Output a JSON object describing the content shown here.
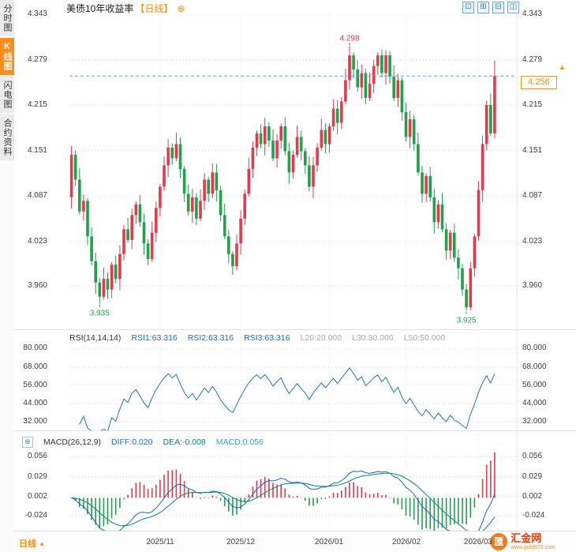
{
  "sidebar": {
    "tabs": [
      {
        "label": "分时图",
        "selected": false
      },
      {
        "label": "K线图",
        "selected": true
      },
      {
        "label": "闪电图",
        "selected": false
      },
      {
        "label": "合约资料",
        "selected": false
      }
    ]
  },
  "titlebar": {
    "title": "美债10年收益率",
    "period": "【日线】",
    "add_icon": "⊕",
    "layout_icons": [
      {
        "name": "layout-single",
        "glyph": "⊡"
      },
      {
        "name": "layout-grid",
        "glyph": "⊞"
      },
      {
        "name": "layout-hsplit",
        "glyph": "⊟"
      },
      {
        "name": "layout-vsplit",
        "glyph": "◫"
      }
    ]
  },
  "icons": {
    "macd_tool": "⊕",
    "period_arrow": "▲",
    "price_arrow": "▲"
  },
  "bottombar": {
    "period_label": "日线"
  },
  "logo": {
    "mark": "匯",
    "name": "汇金网",
    "url": "www.gold678.com"
  },
  "colors": {
    "up": "#e8384a",
    "down": "#1fa24a",
    "rsi": "#2176ae",
    "diff": "#1565c0",
    "dea": "#00897b",
    "dash": "#4aa7f0",
    "accent": "#ff8a00"
  },
  "chart_data": {
    "type": "candlestick",
    "title": "美债10年收益率【日线】",
    "slots": 111,
    "xticks": [
      {
        "index": 22,
        "label": "2025/11"
      },
      {
        "index": 42,
        "label": "2025/12"
      },
      {
        "index": 64,
        "label": "2026/01"
      },
      {
        "index": 83,
        "label": "2026/02"
      },
      {
        "index": 101,
        "label": "2026/03"
      }
    ],
    "main": {
      "ylim": [
        3.899,
        4.343
      ],
      "yticks": [
        "4.343",
        "4.279",
        "4.215",
        "4.151",
        "4.087",
        "4.023",
        "3.960"
      ],
      "current_price": 4.256,
      "current_price_label": "4.256",
      "annotations": [
        {
          "index": 69,
          "value": 4.298,
          "label": "4.298",
          "type": "high"
        },
        {
          "index": 7,
          "value": 3.935,
          "label": "3.935",
          "type": "low"
        },
        {
          "index": 98,
          "value": 3.925,
          "label": "3.925",
          "type": "low"
        }
      ],
      "candles": [
        [
          4.085,
          4.157,
          4.069,
          4.145
        ],
        [
          4.145,
          4.151,
          4.101,
          4.11
        ],
        [
          4.11,
          4.126,
          4.061,
          4.065
        ],
        [
          4.065,
          4.089,
          4.052,
          4.08
        ],
        [
          4.08,
          4.084,
          4.018,
          4.03
        ],
        [
          4.03,
          4.043,
          3.989,
          3.995
        ],
        [
          3.995,
          4.007,
          3.949,
          3.965
        ],
        [
          3.965,
          3.971,
          3.935,
          3.945
        ],
        [
          3.945,
          3.986,
          3.941,
          3.97
        ],
        [
          3.97,
          3.979,
          3.942,
          3.955
        ],
        [
          3.955,
          3.994,
          3.943,
          3.99
        ],
        [
          3.99,
          4.003,
          3.964,
          3.97
        ],
        [
          3.97,
          4.017,
          3.954,
          4.005
        ],
        [
          4.005,
          4.046,
          3.996,
          4.04
        ],
        [
          4.04,
          4.056,
          4.021,
          4.025
        ],
        [
          4.025,
          4.069,
          4.012,
          4.06
        ],
        [
          4.06,
          4.079,
          4.048,
          4.075
        ],
        [
          4.075,
          4.088,
          4.044,
          4.05
        ],
        [
          4.05,
          4.062,
          4.004,
          4.02
        ],
        [
          4.02,
          4.026,
          3.989,
          3.998
        ],
        [
          3.998,
          4.051,
          3.994,
          4.035
        ],
        [
          4.035,
          4.079,
          4.022,
          4.07
        ],
        [
          4.07,
          4.104,
          4.058,
          4.1
        ],
        [
          4.1,
          4.143,
          4.094,
          4.13
        ],
        [
          4.13,
          4.167,
          4.114,
          4.155
        ],
        [
          4.155,
          4.161,
          4.131,
          4.14
        ],
        [
          4.14,
          4.176,
          4.136,
          4.16
        ],
        [
          4.16,
          4.169,
          4.112,
          4.125
        ],
        [
          4.125,
          4.129,
          4.078,
          4.09
        ],
        [
          4.09,
          4.103,
          4.059,
          4.065
        ],
        [
          4.065,
          4.097,
          4.049,
          4.085
        ],
        [
          4.085,
          4.091,
          4.046,
          4.055
        ],
        [
          4.055,
          4.096,
          4.051,
          4.08
        ],
        [
          4.08,
          4.119,
          4.067,
          4.11
        ],
        [
          4.11,
          4.114,
          4.078,
          4.09
        ],
        [
          4.09,
          4.133,
          4.084,
          4.12
        ],
        [
          4.12,
          4.132,
          4.079,
          4.095
        ],
        [
          4.095,
          4.101,
          4.051,
          4.06
        ],
        [
          4.06,
          4.076,
          4.026,
          4.03
        ],
        [
          4.03,
          4.039,
          3.992,
          4.005
        ],
        [
          4.005,
          4.009,
          3.976,
          3.988
        ],
        [
          3.988,
          4.033,
          3.982,
          4.02
        ],
        [
          4.02,
          4.067,
          4.004,
          4.055
        ],
        [
          4.055,
          4.096,
          4.046,
          4.09
        ],
        [
          4.09,
          4.141,
          4.086,
          4.125
        ],
        [
          4.125,
          4.164,
          4.112,
          4.155
        ],
        [
          4.155,
          4.179,
          4.143,
          4.175
        ],
        [
          4.175,
          4.188,
          4.154,
          4.16
        ],
        [
          4.16,
          4.197,
          4.144,
          4.185
        ],
        [
          4.185,
          4.191,
          4.156,
          4.165
        ],
        [
          4.165,
          4.181,
          4.136,
          4.14
        ],
        [
          4.14,
          4.174,
          4.127,
          4.165
        ],
        [
          4.165,
          4.189,
          4.153,
          4.185
        ],
        [
          4.185,
          4.198,
          4.144,
          4.15
        ],
        [
          4.15,
          4.162,
          4.104,
          4.12
        ],
        [
          4.12,
          4.151,
          4.111,
          4.145
        ],
        [
          4.145,
          4.186,
          4.141,
          4.17
        ],
        [
          4.17,
          4.179,
          4.137,
          4.15
        ],
        [
          4.15,
          4.154,
          4.118,
          4.13
        ],
        [
          4.13,
          4.143,
          4.094,
          4.1
        ],
        [
          4.1,
          4.142,
          4.084,
          4.13
        ],
        [
          4.13,
          4.161,
          4.121,
          4.155
        ],
        [
          4.155,
          4.196,
          4.151,
          4.18
        ],
        [
          4.18,
          4.189,
          4.147,
          4.16
        ],
        [
          4.16,
          4.189,
          4.148,
          4.185
        ],
        [
          4.185,
          4.223,
          4.179,
          4.21
        ],
        [
          4.21,
          4.222,
          4.174,
          4.19
        ],
        [
          4.19,
          4.226,
          4.181,
          4.22
        ],
        [
          4.22,
          4.266,
          4.216,
          4.25
        ],
        [
          4.25,
          4.298,
          4.237,
          4.285
        ],
        [
          4.285,
          4.289,
          4.253,
          4.265
        ],
        [
          4.265,
          4.278,
          4.234,
          4.24
        ],
        [
          4.24,
          4.272,
          4.224,
          4.26
        ],
        [
          4.26,
          4.266,
          4.216,
          4.225
        ],
        [
          4.225,
          4.261,
          4.221,
          4.245
        ],
        [
          4.245,
          4.279,
          4.232,
          4.27
        ],
        [
          4.27,
          4.289,
          4.258,
          4.285
        ],
        [
          4.285,
          4.293,
          4.254,
          4.26
        ],
        [
          4.26,
          4.292,
          4.244,
          4.285
        ],
        [
          4.285,
          4.291,
          4.246,
          4.255
        ],
        [
          4.255,
          4.271,
          4.221,
          4.225
        ],
        [
          4.225,
          4.259,
          4.212,
          4.25
        ],
        [
          4.25,
          4.254,
          4.193,
          4.205
        ],
        [
          4.205,
          4.218,
          4.164,
          4.17
        ],
        [
          4.17,
          4.207,
          4.154,
          4.195
        ],
        [
          4.195,
          4.201,
          4.151,
          4.16
        ],
        [
          4.16,
          4.176,
          4.116,
          4.12
        ],
        [
          4.12,
          4.129,
          4.077,
          4.09
        ],
        [
          4.09,
          4.119,
          4.078,
          4.115
        ],
        [
          4.115,
          4.128,
          4.079,
          4.085
        ],
        [
          4.085,
          4.097,
          4.034,
          4.05
        ],
        [
          4.05,
          4.081,
          4.041,
          4.075
        ],
        [
          4.075,
          4.091,
          4.036,
          4.04
        ],
        [
          4.04,
          4.049,
          3.997,
          4.01
        ],
        [
          4.01,
          4.039,
          3.998,
          4.035
        ],
        [
          4.035,
          4.048,
          3.994,
          4.0
        ],
        [
          4.0,
          4.012,
          3.969,
          3.985
        ],
        [
          3.985,
          3.991,
          3.946,
          3.955
        ],
        [
          3.955,
          3.963,
          3.925,
          3.93
        ],
        [
          3.93,
          3.994,
          3.926,
          3.985
        ],
        [
          3.985,
          4.034,
          3.973,
          4.03
        ],
        [
          4.03,
          4.108,
          4.024,
          4.095
        ],
        [
          4.095,
          4.172,
          4.079,
          4.16
        ],
        [
          4.16,
          4.221,
          4.151,
          4.215
        ],
        [
          4.215,
          4.231,
          4.171,
          4.175
        ],
        [
          4.175,
          4.278,
          4.168,
          4.256
        ]
      ]
    },
    "rsi": {
      "header": {
        "title": "RSI(14,14,14)",
        "values": [
          {
            "text": "RSI1:63.316",
            "color": "#1b6fc4"
          },
          {
            "text": "RSI2:63.316",
            "color": "#1b6fc4"
          },
          {
            "text": "RSI3:63.316",
            "color": "#1b6fc4"
          },
          {
            "text": "L20:20.000",
            "color": "#aaaaaa"
          },
          {
            "text": "L30:30.000",
            "color": "#aaaaaa"
          },
          {
            "text": "L50:50.000",
            "color": "#aaaaaa"
          }
        ]
      },
      "period": 14,
      "ylim": [
        26,
        92
      ],
      "yticks": [
        "80.000",
        "68.000",
        "56.000",
        "44.000",
        "32.000"
      ]
    },
    "macd": {
      "header": {
        "title": "MACD(26,12,9)",
        "values": [
          {
            "text": "DIFF:0.020",
            "color": "#1b6fc4"
          },
          {
            "text": "DEA:-0.008",
            "color": "#00897b"
          },
          {
            "text": "MACD:0.056",
            "color": "#29a6d4"
          }
        ]
      },
      "params": [
        26,
        12,
        9
      ],
      "ylim": [
        -0.046,
        0.091
      ],
      "yticks": [
        "0.056",
        "0.029",
        "0.002",
        "-0.024"
      ]
    }
  }
}
